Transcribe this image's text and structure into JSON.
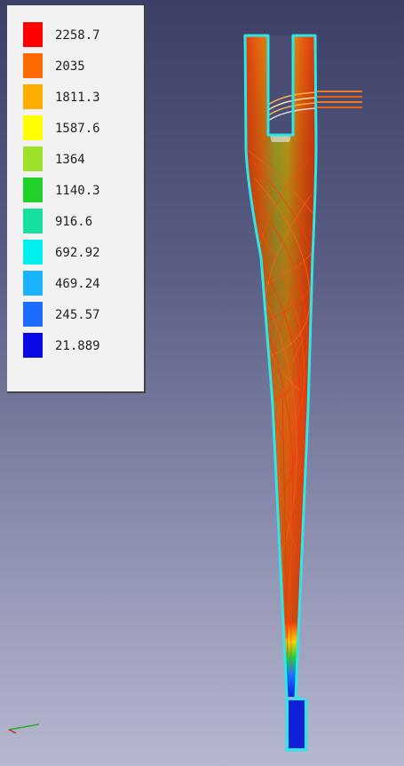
{
  "legend": {
    "entries": [
      {
        "value": "2258.7",
        "color": "#ff0000"
      },
      {
        "value": "2035",
        "color": "#ff6a00"
      },
      {
        "value": "1811.3",
        "color": "#ffae00"
      },
      {
        "value": "1587.6",
        "color": "#ffff00"
      },
      {
        "value": "1364",
        "color": "#9ee12a"
      },
      {
        "value": "1140.3",
        "color": "#22d02a"
      },
      {
        "value": "916.6",
        "color": "#16e0a0"
      },
      {
        "value": "692.92",
        "color": "#00f0f0"
      },
      {
        "value": "469.24",
        "color": "#1ab3ff"
      },
      {
        "value": "245.57",
        "color": "#1e6bff"
      },
      {
        "value": "21.889",
        "color": "#0a0ae6"
      }
    ]
  },
  "colors": {
    "wall_outline": "#2fe6e6",
    "streamline": "#e84a12",
    "body_core": "#8fb02a"
  }
}
